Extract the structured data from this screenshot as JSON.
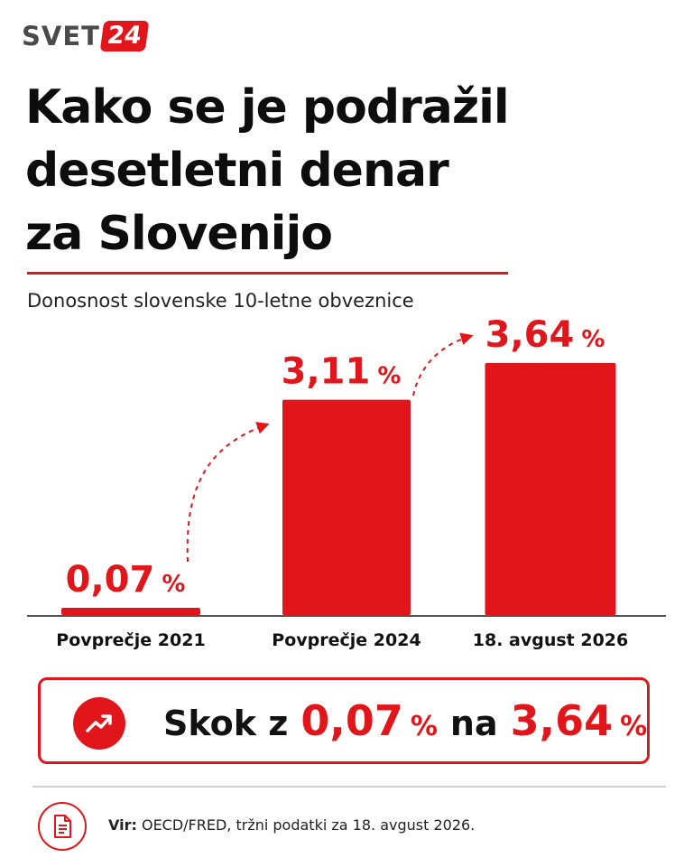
{
  "brand": {
    "name_part1": "SVET",
    "name_part2": "24",
    "accent": "#e0161b",
    "dark": "#4a4a4a"
  },
  "title_lines": [
    "Kako se je podražil",
    "desetletni denar",
    "za Slovenijo"
  ],
  "subtitle": "Donosnost slovenske 10-letne obveznice",
  "chart_data": {
    "type": "bar",
    "title": "",
    "xlabel": "",
    "ylabel": "",
    "categories": [
      "Povprečje 2021",
      "Povprečje 2024",
      "18. avgust 2026"
    ],
    "values": [
      0.07,
      3.11,
      3.64
    ],
    "value_labels": [
      "0,07",
      "3,11",
      "3,64"
    ],
    "unit": "%",
    "ylim": [
      0,
      3.64
    ],
    "grid": false,
    "bar_color": "#e0161b",
    "annotations": "dashed red arrows from each value label to the next bar"
  },
  "callout": {
    "word_from": "Skok z",
    "from_value": "0,07",
    "from_unit": "%",
    "word_to": "na",
    "to_value": "3,64",
    "to_unit": "%",
    "icon": "trending-up-icon"
  },
  "footer": {
    "source_label": "Vir:",
    "source_text": "OECD/FRED, tržni podatki za 18. avgust 2026.",
    "icon": "document-icon"
  }
}
